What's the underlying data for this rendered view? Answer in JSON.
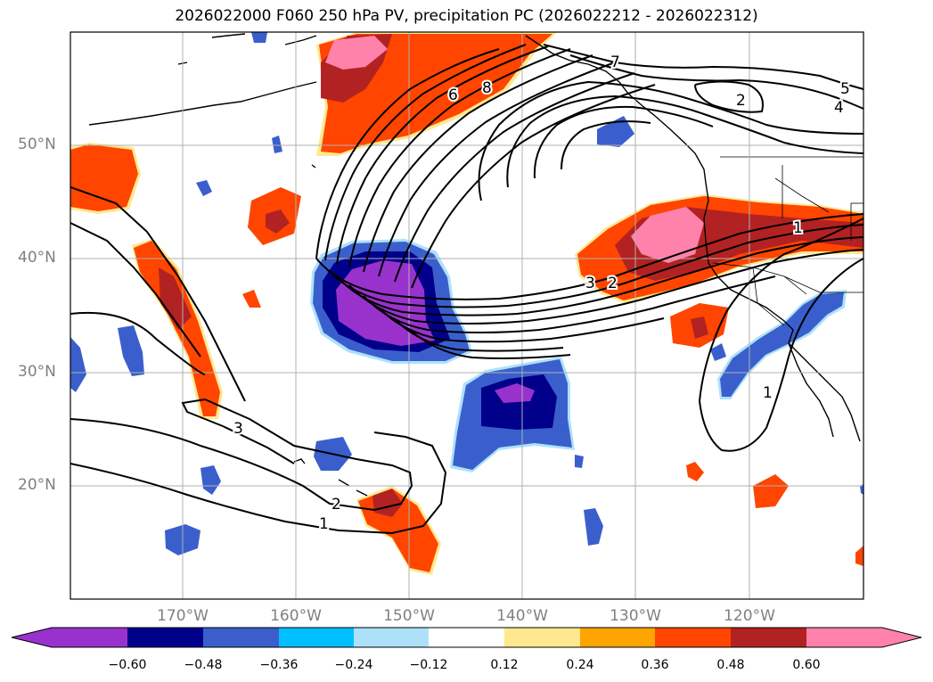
{
  "title": "2026022000 F060 250 hPa PV, precipitation PC (2026022212 - 2026022312)",
  "lat_labels": [
    "50°N",
    "40°N",
    "30°N",
    "20°N"
  ],
  "lon_labels": [
    "170°W",
    "160°W",
    "150°W",
    "140°W",
    "130°W",
    "120°W"
  ],
  "contour_labels": [
    "7",
    "6",
    "8",
    "5",
    "4",
    "2",
    "3",
    "2",
    "1",
    "1",
    "3",
    "2",
    "1"
  ],
  "colorbar": {
    "ticks": [
      "−0.60",
      "−0.48",
      "−0.36",
      "−0.24",
      "−0.12",
      "0.12",
      "0.24",
      "0.36",
      "0.48",
      "0.60"
    ],
    "colors": [
      "#9932CC",
      "#00008B",
      "#3A5FCD",
      "#00BFFF",
      "#ADE1FA",
      "#FFFFFF",
      "#FFE88F",
      "#FFA500",
      "#FF4500",
      "#B22222",
      "#FF82AB"
    ]
  },
  "colors": {
    "red": "#FF4500",
    "dark_red": "#B22222",
    "pink": "#FF82AB",
    "orange": "#FFA500",
    "yellow": "#FFE88F",
    "light_blue": "#ADE1FA",
    "blue": "#3A5FCD",
    "navy": "#00008B",
    "purple": "#9932CC"
  }
}
